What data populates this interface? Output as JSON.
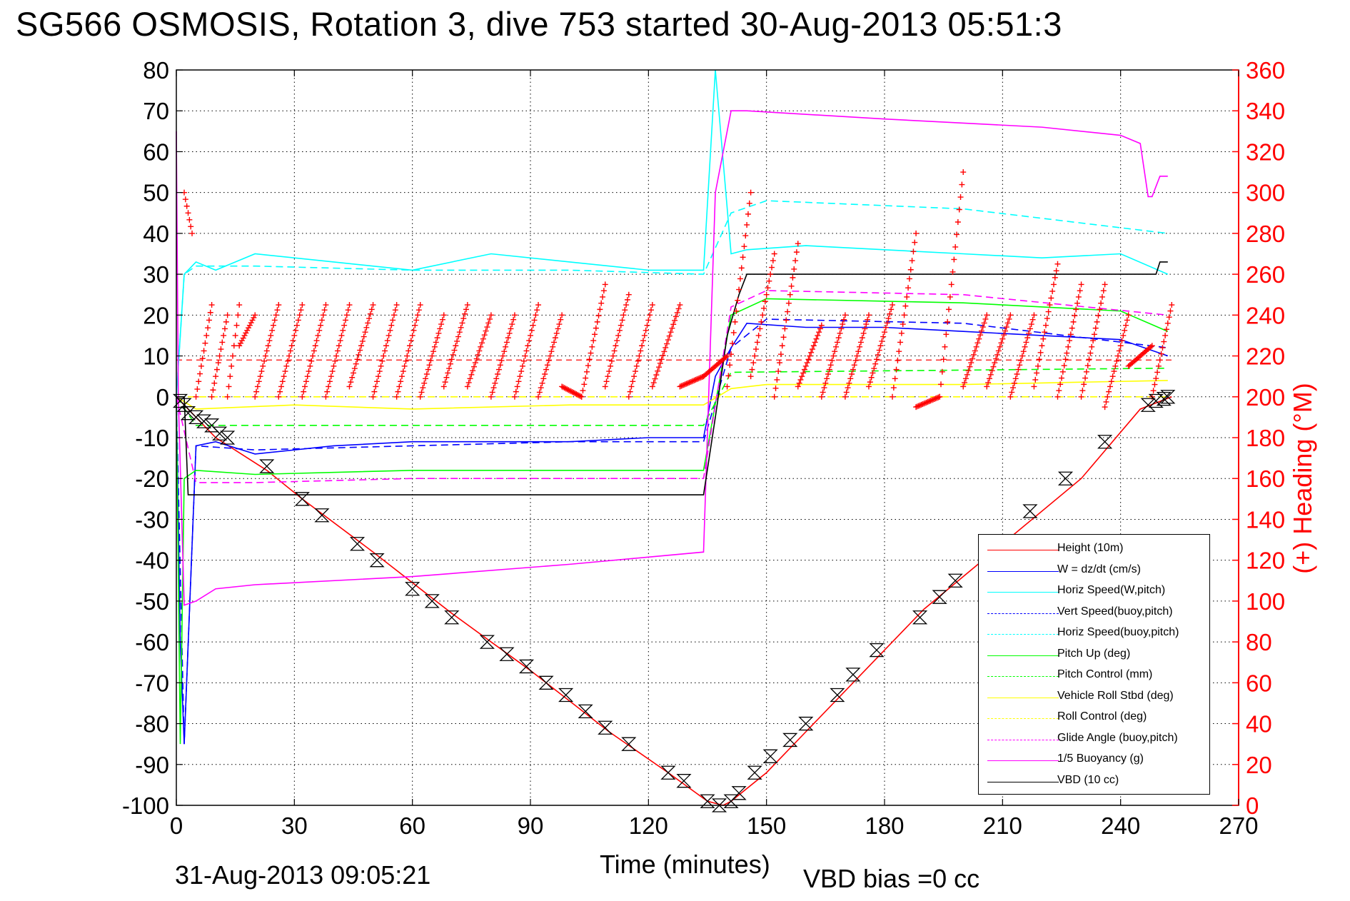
{
  "title": "SG566 OSMOSIS, Rotation 3, dive 753 started 30-Aug-2013 05:51:3",
  "footer_date": "31-Aug-2013 09:05:21",
  "footer_bias": "VBD bias =0 cc",
  "chart_data": {
    "type": "line",
    "xlabel": "Time (minutes)",
    "ylabel": "",
    "ylabel_right": "(+) Heading (°M)",
    "xlim": [
      0,
      270
    ],
    "ylim": [
      -100,
      80
    ],
    "ylim_right": [
      0,
      360
    ],
    "xticks": [
      0,
      30,
      60,
      90,
      120,
      150,
      180,
      210,
      240,
      270
    ],
    "yticks": [
      80,
      70,
      60,
      50,
      40,
      30,
      20,
      10,
      0,
      -10,
      -20,
      -30,
      -40,
      -50,
      -60,
      -70,
      -80,
      -90,
      -100
    ],
    "yticks_right": [
      360,
      340,
      320,
      300,
      280,
      260,
      240,
      220,
      200,
      180,
      160,
      140,
      120,
      100,
      80,
      60,
      40,
      20,
      0
    ],
    "grid": true,
    "legend_placement": "bottom-right",
    "series": [
      {
        "name": "Height (10m)",
        "color": "#ff0000",
        "style": "solid",
        "x": [
          0,
          5,
          10,
          23,
          32,
          50,
          70,
          90,
          110,
          125,
          135,
          139,
          141,
          150,
          160,
          175,
          190,
          210,
          230,
          245,
          253
        ],
        "y": [
          0,
          -5,
          -10,
          -18,
          -25,
          -38,
          -53,
          -67,
          -82,
          -92,
          -99,
          -100,
          -99,
          -92,
          -82,
          -67,
          -52,
          -36,
          -20,
          -3,
          0
        ]
      },
      {
        "name": "W = dz/dt (cm/s)",
        "color": "#0000ff",
        "style": "solid",
        "x": [
          0,
          1,
          2,
          5,
          10,
          20,
          40,
          60,
          80,
          100,
          120,
          134,
          137,
          141,
          145,
          160,
          180,
          200,
          220,
          240,
          252
        ],
        "y": [
          0,
          -60,
          -85,
          -12,
          -11,
          -14,
          -12,
          -11,
          -11,
          -11,
          -10,
          -10,
          5,
          12,
          18,
          17,
          17,
          16,
          15,
          14,
          10
        ]
      },
      {
        "name": "Horiz Speed(W,pitch)",
        "color": "#00ffff",
        "style": "solid",
        "x": [
          0,
          2,
          5,
          10,
          20,
          40,
          60,
          80,
          100,
          120,
          134,
          137,
          141,
          145,
          160,
          180,
          200,
          220,
          240,
          252
        ],
        "y": [
          0,
          30,
          33,
          31,
          35,
          33,
          31,
          35,
          33,
          31,
          31,
          80,
          35,
          36,
          37,
          36,
          35,
          34,
          35,
          30
        ]
      },
      {
        "name": "Vert Speed(buoy,pitch)",
        "color": "#0000ff",
        "style": "dashed",
        "x": [
          0,
          2,
          5,
          20,
          60,
          100,
          134,
          141,
          150,
          200,
          252
        ],
        "y": [
          0,
          -85,
          -12,
          -13,
          -12,
          -11,
          -11,
          12,
          19,
          18,
          12
        ]
      },
      {
        "name": "Horiz Speed(buoy,pitch)",
        "color": "#00ffff",
        "style": "dashed",
        "x": [
          0,
          2,
          5,
          20,
          60,
          100,
          134,
          141,
          150,
          200,
          252
        ],
        "y": [
          0,
          30,
          32,
          32,
          31,
          31,
          30,
          45,
          48,
          46,
          40
        ]
      },
      {
        "name": "Pitch Up (deg)",
        "color": "#00ff00",
        "style": "solid",
        "x": [
          0,
          1,
          2,
          5,
          20,
          60,
          100,
          134,
          141,
          150,
          200,
          240,
          252
        ],
        "y": [
          0,
          -85,
          -20,
          -18,
          -19,
          -18,
          -18,
          -18,
          20,
          24,
          23,
          21,
          16
        ]
      },
      {
        "name": "Pitch Control (mm)",
        "color": "#00ff00",
        "style": "dashed",
        "x": [
          0,
          5,
          134,
          141,
          252
        ],
        "y": [
          0,
          -7,
          -7,
          6,
          7
        ]
      },
      {
        "name": "Vehicle Roll Stbd (deg)",
        "color": "#ffff00",
        "style": "solid",
        "x": [
          0,
          5,
          30,
          60,
          100,
          134,
          141,
          150,
          200,
          252
        ],
        "y": [
          0,
          -3,
          -2,
          -3,
          -2,
          -2,
          2,
          3,
          3,
          4
        ]
      },
      {
        "name": "Roll Control (deg)",
        "color": "#ffff00",
        "style": "dashed",
        "x": [
          0,
          252
        ],
        "y": [
          0,
          0
        ]
      },
      {
        "name": "Glide Angle (buoy,pitch)",
        "color": "#ff00ff",
        "style": "dashed",
        "x": [
          0,
          5,
          20,
          60,
          100,
          134,
          141,
          150,
          200,
          252
        ],
        "y": [
          0,
          -21,
          -21,
          -20,
          -20,
          -20,
          22,
          26,
          25,
          20
        ]
      },
      {
        "name": "1/5 Buoyancy (g)",
        "color": "#ff00ff",
        "style": "solid",
        "x": [
          0,
          0.5,
          2,
          5,
          10,
          20,
          60,
          100,
          134,
          137,
          141,
          145,
          180,
          220,
          240,
          245,
          247,
          248,
          250,
          252
        ],
        "y": [
          65,
          0,
          -51,
          -50,
          -47,
          -46,
          -44,
          -41,
          -38,
          50,
          70,
          70,
          68,
          66,
          64,
          62,
          49,
          49,
          54,
          54
        ]
      },
      {
        "name": "VBD (10 cc)",
        "color": "#000000",
        "style": "solid",
        "x": [
          0,
          2,
          3,
          134,
          137,
          140,
          143,
          145,
          180,
          220,
          249,
          250,
          252
        ],
        "y": [
          0,
          0,
          -24,
          -24,
          -5,
          15,
          25,
          30,
          30,
          30,
          30,
          33,
          33
        ]
      }
    ],
    "heading_series": {
      "name": "Heading",
      "color": "#ff0000",
      "marker": "+",
      "axis": "right",
      "reference_line": 218,
      "sawtooth_segments": [
        {
          "x": [
            2,
            4
          ],
          "y": [
            300,
            280
          ]
        },
        {
          "x": [
            5,
            9
          ],
          "y": [
            200,
            245
          ]
        },
        {
          "x": [
            9,
            13
          ],
          "y": [
            200,
            240
          ]
        },
        {
          "x": [
            13,
            16
          ],
          "y": [
            200,
            245
          ]
        },
        {
          "x": [
            16,
            20
          ],
          "y": [
            225,
            240
          ]
        },
        {
          "x": [
            20,
            26
          ],
          "y": [
            200,
            245
          ]
        },
        {
          "x": [
            26,
            32
          ],
          "y": [
            200,
            245
          ]
        },
        {
          "x": [
            32,
            38
          ],
          "y": [
            200,
            245
          ]
        },
        {
          "x": [
            38,
            44
          ],
          "y": [
            200,
            245
          ]
        },
        {
          "x": [
            44,
            50
          ],
          "y": [
            205,
            245
          ]
        },
        {
          "x": [
            50,
            56
          ],
          "y": [
            200,
            245
          ]
        },
        {
          "x": [
            56,
            62
          ],
          "y": [
            200,
            245
          ]
        },
        {
          "x": [
            62,
            68
          ],
          "y": [
            200,
            240
          ]
        },
        {
          "x": [
            68,
            74
          ],
          "y": [
            205,
            245
          ]
        },
        {
          "x": [
            74,
            80
          ],
          "y": [
            205,
            240
          ]
        },
        {
          "x": [
            80,
            86
          ],
          "y": [
            200,
            240
          ]
        },
        {
          "x": [
            86,
            92
          ],
          "y": [
            200,
            245
          ]
        },
        {
          "x": [
            92,
            98
          ],
          "y": [
            200,
            240
          ]
        },
        {
          "x": [
            98,
            103
          ],
          "y": [
            205,
            200
          ]
        },
        {
          "x": [
            103,
            109
          ],
          "y": [
            200,
            255
          ]
        },
        {
          "x": [
            109,
            115
          ],
          "y": [
            205,
            250
          ]
        },
        {
          "x": [
            115,
            121
          ],
          "y": [
            200,
            245
          ]
        },
        {
          "x": [
            121,
            128
          ],
          "y": [
            205,
            245
          ]
        },
        {
          "x": [
            128,
            134
          ],
          "y": [
            205,
            210
          ]
        },
        {
          "x": [
            134,
            140
          ],
          "y": [
            210,
            220
          ]
        },
        {
          "x": [
            140,
            146
          ],
          "y": [
            205,
            300
          ]
        },
        {
          "x": [
            146,
            152
          ],
          "y": [
            210,
            270
          ]
        },
        {
          "x": [
            152,
            158
          ],
          "y": [
            200,
            275
          ]
        },
        {
          "x": [
            158,
            164
          ],
          "y": [
            205,
            235
          ]
        },
        {
          "x": [
            164,
            170
          ],
          "y": [
            200,
            240
          ]
        },
        {
          "x": [
            170,
            176
          ],
          "y": [
            200,
            240
          ]
        },
        {
          "x": [
            176,
            182
          ],
          "y": [
            205,
            245
          ]
        },
        {
          "x": [
            182,
            188
          ],
          "y": [
            200,
            280
          ]
        },
        {
          "x": [
            188,
            194
          ],
          "y": [
            195,
            200
          ]
        },
        {
          "x": [
            194,
            200
          ],
          "y": [
            200,
            310
          ]
        },
        {
          "x": [
            200,
            206
          ],
          "y": [
            205,
            240
          ]
        },
        {
          "x": [
            206,
            212
          ],
          "y": [
            205,
            240
          ]
        },
        {
          "x": [
            212,
            218
          ],
          "y": [
            200,
            240
          ]
        },
        {
          "x": [
            218,
            224
          ],
          "y": [
            205,
            265
          ]
        },
        {
          "x": [
            224,
            230
          ],
          "y": [
            200,
            255
          ]
        },
        {
          "x": [
            230,
            236
          ],
          "y": [
            200,
            255
          ]
        },
        {
          "x": [
            236,
            242
          ],
          "y": [
            195,
            240
          ]
        },
        {
          "x": [
            242,
            248
          ],
          "y": [
            215,
            225
          ]
        },
        {
          "x": [
            248,
            253
          ],
          "y": [
            200,
            245
          ]
        }
      ]
    },
    "height_markers": {
      "marker": "hourglass",
      "color": "#000000",
      "x": [
        1,
        2,
        3,
        5,
        7,
        9,
        11,
        13,
        23,
        32,
        37,
        46,
        51,
        60,
        65,
        70,
        79,
        84,
        89,
        94,
        99,
        104,
        109,
        115,
        125,
        129,
        135,
        138,
        141,
        143,
        147,
        151,
        156,
        160,
        168,
        172,
        178,
        189,
        194,
        198,
        208,
        217,
        226,
        236,
        247,
        249,
        251,
        252
      ],
      "y": [
        -1,
        -2,
        -4,
        -5,
        -6,
        -7,
        -9,
        -10,
        -17,
        -25,
        -29,
        -36,
        -40,
        -47,
        -50,
        -54,
        -60,
        -63,
        -66,
        -70,
        -73,
        -77,
        -81,
        -85,
        -92,
        -94,
        -99,
        -100,
        -99,
        -97,
        -92,
        -88,
        -84,
        -80,
        -73,
        -68,
        -62,
        -54,
        -49,
        -45,
        -36,
        -28,
        -20,
        -11,
        -2,
        -1,
        -0.5,
        0
      ]
    }
  }
}
